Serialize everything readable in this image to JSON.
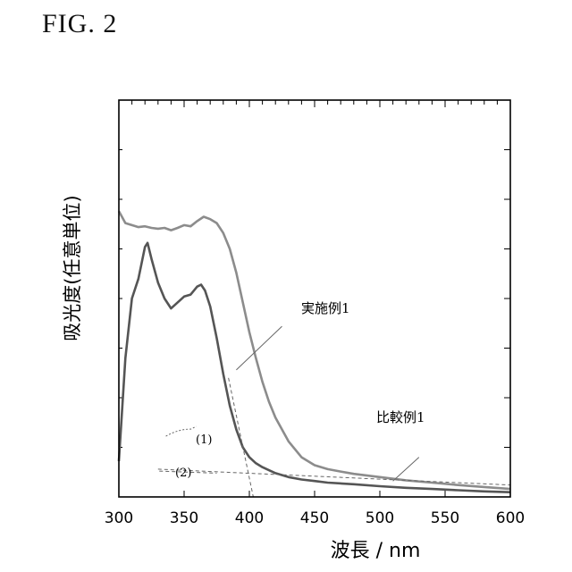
{
  "figure_label": "FIG.  2",
  "chart_data": {
    "type": "line",
    "xlabel": "波長 / nm",
    "ylabel": "吸光度(任意単位)",
    "xlim": [
      300,
      600
    ],
    "ylim": [
      0,
      1
    ],
    "x_ticks": [
      "300",
      "350",
      "400",
      "450",
      "500",
      "550",
      "600"
    ],
    "colors": {
      "実施例1": "#8c8c8c",
      "比較例1": "#555555",
      "axis": "#000000",
      "guide": "#666666"
    },
    "series": [
      {
        "name": "実施例1",
        "x": [
          300,
          305,
          310,
          315,
          320,
          325,
          330,
          335,
          340,
          345,
          350,
          355,
          360,
          365,
          370,
          375,
          380,
          385,
          390,
          395,
          400,
          405,
          410,
          415,
          420,
          430,
          440,
          450,
          460,
          470,
          480,
          500,
          520,
          540,
          560,
          580,
          600
        ],
        "y": [
          0.72,
          0.69,
          0.685,
          0.68,
          0.682,
          0.678,
          0.676,
          0.678,
          0.672,
          0.678,
          0.685,
          0.682,
          0.695,
          0.706,
          0.7,
          0.69,
          0.665,
          0.625,
          0.565,
          0.49,
          0.415,
          0.35,
          0.29,
          0.24,
          0.2,
          0.14,
          0.1,
          0.08,
          0.07,
          0.064,
          0.058,
          0.05,
          0.042,
          0.036,
          0.03,
          0.025,
          0.02
        ]
      },
      {
        "name": "比較例1",
        "x": [
          300,
          305,
          310,
          315,
          320,
          322,
          325,
          330,
          335,
          340,
          345,
          350,
          355,
          360,
          363,
          366,
          370,
          375,
          380,
          385,
          390,
          395,
          400,
          405,
          410,
          420,
          430,
          440,
          450,
          460,
          480,
          500,
          520,
          540,
          560,
          580,
          600
        ],
        "y": [
          0.09,
          0.35,
          0.5,
          0.55,
          0.63,
          0.64,
          0.6,
          0.54,
          0.5,
          0.475,
          0.49,
          0.505,
          0.51,
          0.53,
          0.535,
          0.52,
          0.48,
          0.4,
          0.31,
          0.23,
          0.17,
          0.125,
          0.1,
          0.085,
          0.075,
          0.06,
          0.05,
          0.044,
          0.04,
          0.036,
          0.032,
          0.027,
          0.023,
          0.02,
          0.017,
          0.014,
          0.012
        ]
      }
    ],
    "annotations": [
      {
        "text": "実施例1"
      },
      {
        "text": "比較例1"
      },
      {
        "text": "(1)"
      },
      {
        "text": "(2)"
      }
    ]
  }
}
